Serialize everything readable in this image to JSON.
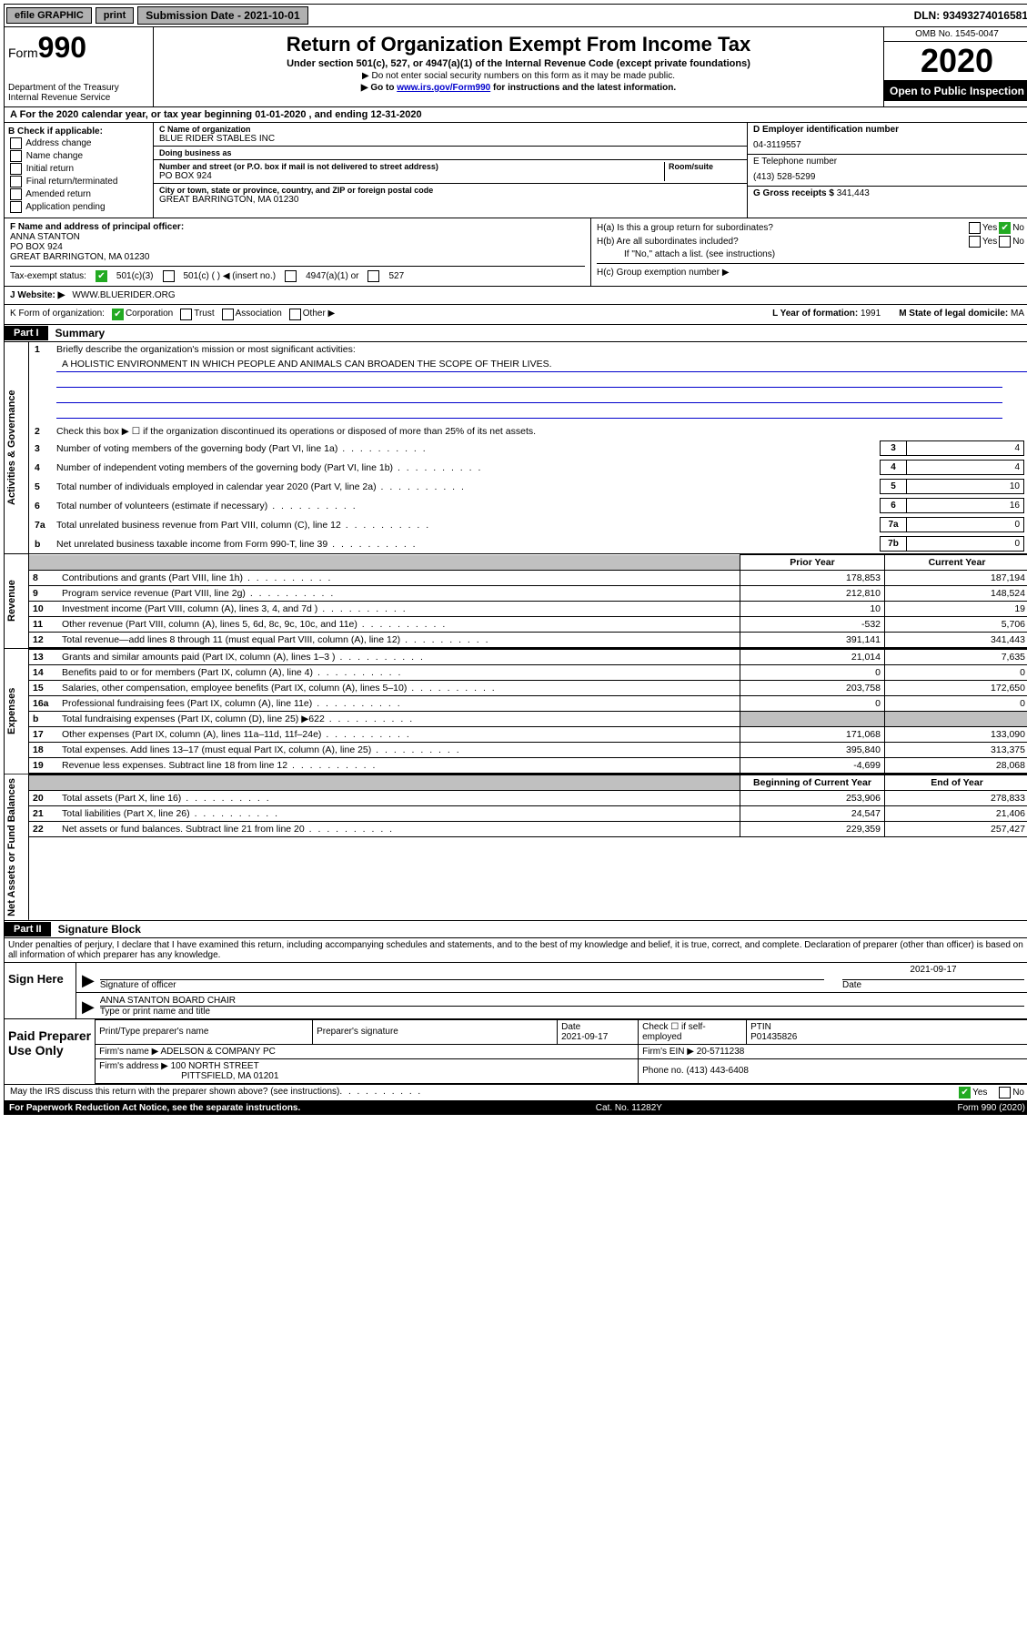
{
  "topbar": {
    "efile": "efile GRAPHIC",
    "print": "print",
    "subdate_label": "Submission Date - 2021-10-01",
    "dln": "DLN: 93493274016581"
  },
  "header": {
    "form_label": "Form",
    "form_num": "990",
    "dept": "Department of the Treasury",
    "irs": "Internal Revenue Service",
    "title": "Return of Organization Exempt From Income Tax",
    "subtitle": "Under section 501(c), 527, or 4947(a)(1) of the Internal Revenue Code (except private foundations)",
    "note1": "▶ Do not enter social security numbers on this form as it may be made public.",
    "note2_pre": "▶ Go to ",
    "note2_link": "www.irs.gov/Form990",
    "note2_post": " for instructions and the latest information.",
    "omb": "OMB No. 1545-0047",
    "year": "2020",
    "open": "Open to Public Inspection"
  },
  "taxyear": "A For the 2020 calendar year, or tax year beginning 01-01-2020   , and ending 12-31-2020",
  "sectionB": {
    "check_label": "B Check if applicable:",
    "opts": [
      "Address change",
      "Name change",
      "Initial return",
      "Final return/terminated",
      "Amended return",
      "Application pending"
    ],
    "c_name_lbl": "C Name of organization",
    "c_name": "BLUE RIDER STABLES INC",
    "dba_lbl": "Doing business as",
    "dba": "",
    "addr_lbl": "Number and street (or P.O. box if mail is not delivered to street address)",
    "room_lbl": "Room/suite",
    "addr": "PO BOX 924",
    "city_lbl": "City or town, state or province, country, and ZIP or foreign postal code",
    "city": "GREAT BARRINGTON, MA  01230",
    "d_lbl": "D Employer identification number",
    "d_val": "04-3119557",
    "e_lbl": "E Telephone number",
    "e_val": "(413) 528-5299",
    "g_lbl": "G Gross receipts $",
    "g_val": "341,443"
  },
  "officer": {
    "f_lbl": "F Name and address of principal officer:",
    "name": "ANNA STANTON",
    "addr1": "PO BOX 924",
    "addr2": "GREAT BARRINGTON, MA  01230",
    "ha_lbl": "H(a)  Is this a group return for subordinates?",
    "hb_lbl": "H(b)  Are all subordinates included?",
    "hb_note": "If \"No,\" attach a list. (see instructions)",
    "hc_lbl": "H(c)  Group exemption number ▶",
    "yes": "Yes",
    "no": "No"
  },
  "taxexempt": {
    "lbl": "Tax-exempt status:",
    "c3": "501(c)(3)",
    "c": "501(c) (  ) ◀ (insert no.)",
    "a947": "4947(a)(1) or",
    "s527": "527"
  },
  "website": {
    "lbl": "J   Website: ▶",
    "val": "WWW.BLUERIDER.ORG"
  },
  "kform": {
    "lbl": "K Form of organization:",
    "corp": "Corporation",
    "trust": "Trust",
    "assoc": "Association",
    "other": "Other ▶",
    "l_lbl": "L Year of formation:",
    "l_val": "1991",
    "m_lbl": "M State of legal domicile:",
    "m_val": "MA"
  },
  "part1": {
    "tab": "Part I",
    "title": "Summary",
    "vtab1": "Activities & Governance",
    "vtab2": "Revenue",
    "vtab3": "Expenses",
    "vtab4": "Net Assets or Fund Balances",
    "q1_lbl": "Briefly describe the organization's mission or most significant activities:",
    "q1_val": "A HOLISTIC ENVIRONMENT IN WHICH PEOPLE AND ANIMALS CAN BROADEN THE SCOPE OF THEIR LIVES.",
    "q2": "Check this box ▶ ☐  if the organization discontinued its operations or disposed of more than 25% of its net assets.",
    "lines_gov": [
      {
        "n": "3",
        "t": "Number of voting members of the governing body (Part VI, line 1a)",
        "b": "3",
        "v": "4"
      },
      {
        "n": "4",
        "t": "Number of independent voting members of the governing body (Part VI, line 1b)",
        "b": "4",
        "v": "4"
      },
      {
        "n": "5",
        "t": "Total number of individuals employed in calendar year 2020 (Part V, line 2a)",
        "b": "5",
        "v": "10"
      },
      {
        "n": "6",
        "t": "Total number of volunteers (estimate if necessary)",
        "b": "6",
        "v": "16"
      },
      {
        "n": "7a",
        "t": "Total unrelated business revenue from Part VIII, column (C), line 12",
        "b": "7a",
        "v": "0"
      },
      {
        "n": "b",
        "t": "Net unrelated business taxable income from Form 990-T, line 39",
        "b": "7b",
        "v": "0"
      }
    ],
    "col_prior": "Prior Year",
    "col_current": "Current Year",
    "rev": [
      {
        "n": "8",
        "t": "Contributions and grants (Part VIII, line 1h)",
        "p": "178,853",
        "c": "187,194"
      },
      {
        "n": "9",
        "t": "Program service revenue (Part VIII, line 2g)",
        "p": "212,810",
        "c": "148,524"
      },
      {
        "n": "10",
        "t": "Investment income (Part VIII, column (A), lines 3, 4, and 7d )",
        "p": "10",
        "c": "19"
      },
      {
        "n": "11",
        "t": "Other revenue (Part VIII, column (A), lines 5, 6d, 8c, 9c, 10c, and 11e)",
        "p": "-532",
        "c": "5,706"
      },
      {
        "n": "12",
        "t": "Total revenue—add lines 8 through 11 (must equal Part VIII, column (A), line 12)",
        "p": "391,141",
        "c": "341,443"
      }
    ],
    "exp": [
      {
        "n": "13",
        "t": "Grants and similar amounts paid (Part IX, column (A), lines 1–3 )",
        "p": "21,014",
        "c": "7,635"
      },
      {
        "n": "14",
        "t": "Benefits paid to or for members (Part IX, column (A), line 4)",
        "p": "0",
        "c": "0"
      },
      {
        "n": "15",
        "t": "Salaries, other compensation, employee benefits (Part IX, column (A), lines 5–10)",
        "p": "203,758",
        "c": "172,650"
      },
      {
        "n": "16a",
        "t": "Professional fundraising fees (Part IX, column (A), line 11e)",
        "p": "0",
        "c": "0"
      },
      {
        "n": "b",
        "t": "Total fundraising expenses (Part IX, column (D), line 25) ▶622",
        "p": "",
        "c": "",
        "shade": true
      },
      {
        "n": "17",
        "t": "Other expenses (Part IX, column (A), lines 11a–11d, 11f–24e)",
        "p": "171,068",
        "c": "133,090"
      },
      {
        "n": "18",
        "t": "Total expenses. Add lines 13–17 (must equal Part IX, column (A), line 25)",
        "p": "395,840",
        "c": "313,375"
      },
      {
        "n": "19",
        "t": "Revenue less expenses. Subtract line 18 from line 12",
        "p": "-4,699",
        "c": "28,068"
      }
    ],
    "col_begin": "Beginning of Current Year",
    "col_end": "End of Year",
    "net": [
      {
        "n": "20",
        "t": "Total assets (Part X, line 16)",
        "p": "253,906",
        "c": "278,833"
      },
      {
        "n": "21",
        "t": "Total liabilities (Part X, line 26)",
        "p": "24,547",
        "c": "21,406"
      },
      {
        "n": "22",
        "t": "Net assets or fund balances. Subtract line 21 from line 20",
        "p": "229,359",
        "c": "257,427"
      }
    ]
  },
  "part2": {
    "tab": "Part II",
    "title": "Signature Block",
    "perjury": "Under penalties of perjury, I declare that I have examined this return, including accompanying schedules and statements, and to the best of my knowledge and belief, it is true, correct, and complete. Declaration of preparer (other than officer) is based on all information of which preparer has any knowledge."
  },
  "sign": {
    "lbl": "Sign Here",
    "sig_lbl": "Signature of officer",
    "date": "2021-09-17",
    "date_lbl": "Date",
    "name": "ANNA STANTON  BOARD CHAIR",
    "name_lbl": "Type or print name and title"
  },
  "paid": {
    "lbl": "Paid Preparer Use Only",
    "h1": "Print/Type preparer's name",
    "h2": "Preparer's signature",
    "h3": "Date",
    "h3v": "2021-09-17",
    "h4": "Check ☐ if self-employed",
    "h5": "PTIN",
    "h5v": "P01435826",
    "firm_lbl": "Firm's name    ▶",
    "firm": "ADELSON & COMPANY PC",
    "ein_lbl": "Firm's EIN ▶",
    "ein": "20-5711238",
    "addr_lbl": "Firm's address ▶",
    "addr1": "100 NORTH STREET",
    "addr2": "PITTSFIELD, MA  01201",
    "phone_lbl": "Phone no.",
    "phone": "(413) 443-6408"
  },
  "footer": {
    "discuss": "May the IRS discuss this return with the preparer shown above? (see instructions)",
    "yes": "Yes",
    "no": "No",
    "pra": "For Paperwork Reduction Act Notice, see the separate instructions.",
    "cat": "Cat. No. 11282Y",
    "form": "Form 990 (2020)"
  }
}
